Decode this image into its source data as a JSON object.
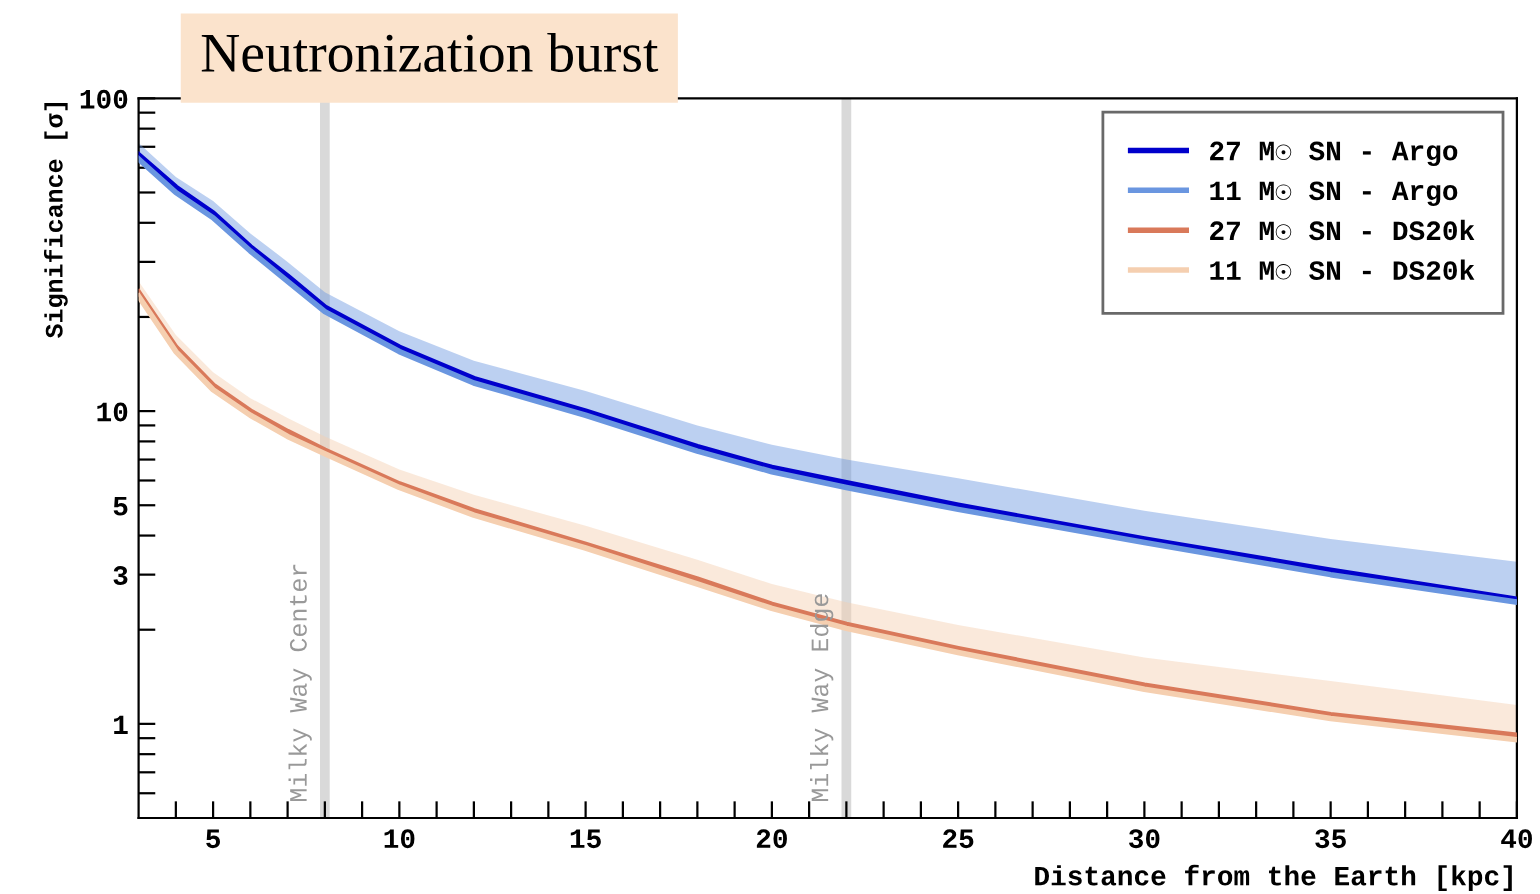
{
  "chart_data": {
    "type": "line",
    "title": "Neutronization burst",
    "xlabel": "Distance from the Earth [kpc]",
    "ylabel": "Significance [σ]",
    "log": "y",
    "xlim": [
      3,
      40
    ],
    "ylim": [
      0.5,
      100
    ],
    "xticks": [
      {
        "value": 4,
        "label": null
      },
      5,
      {
        "value": 6,
        "label": null
      },
      {
        "value": 7,
        "label": null
      },
      {
        "value": 8,
        "label": null
      },
      {
        "value": 9,
        "label": null
      },
      10,
      {
        "value": 11,
        "label": null
      },
      {
        "value": 12,
        "label": null
      },
      {
        "value": 13,
        "label": null
      },
      {
        "value": 14,
        "label": null
      },
      15,
      {
        "value": 16,
        "label": null
      },
      {
        "value": 17,
        "label": null
      },
      {
        "value": 18,
        "label": null
      },
      {
        "value": 19,
        "label": null
      },
      20,
      {
        "value": 21,
        "label": null
      },
      {
        "value": 22,
        "label": null
      },
      {
        "value": 23,
        "label": null
      },
      {
        "value": 24,
        "label": null
      },
      25,
      {
        "value": 26,
        "label": null
      },
      {
        "value": 27,
        "label": null
      },
      {
        "value": 28,
        "label": null
      },
      {
        "value": 29,
        "label": null
      },
      30,
      {
        "value": 31,
        "label": null
      },
      {
        "value": 32,
        "label": null
      },
      {
        "value": 33,
        "label": null
      },
      {
        "value": 34,
        "label": null
      },
      35,
      {
        "value": 36,
        "label": null
      },
      {
        "value": 37,
        "label": null
      },
      {
        "value": 38,
        "label": null
      },
      {
        "value": 39,
        "label": null
      },
      40
    ],
    "yticks": [
      {
        "value": 0.6,
        "label": null
      },
      {
        "value": 0.7,
        "label": null
      },
      {
        "value": 0.8,
        "label": null
      },
      {
        "value": 0.9,
        "label": null
      },
      1,
      {
        "value": 2,
        "label": null
      },
      3,
      {
        "value": 4,
        "label": null
      },
      5,
      {
        "value": 6,
        "label": null
      },
      {
        "value": 7,
        "label": null
      },
      {
        "value": 8,
        "label": null
      },
      {
        "value": 9,
        "label": null
      },
      10,
      {
        "value": 20,
        "label": null
      },
      {
        "value": 30,
        "label": null
      },
      {
        "value": 40,
        "label": null
      },
      {
        "value": 50,
        "label": null
      },
      {
        "value": 60,
        "label": null
      },
      {
        "value": 70,
        "label": null
      },
      {
        "value": 80,
        "label": null
      },
      {
        "value": 90,
        "label": null
      },
      100
    ],
    "x": [
      3,
      4,
      5,
      6,
      7,
      8,
      10,
      12,
      15,
      18,
      20,
      22,
      25,
      30,
      35,
      40
    ],
    "series": [
      {
        "name": "27 M☉ SN - Argo",
        "color": "#0000cc",
        "values": [
          66,
          52,
          43,
          33.5,
          27,
          21.5,
          16,
          12.7,
          10,
          7.7,
          6.6,
          5.9,
          5.0,
          3.9,
          3.1,
          2.5
        ]
      },
      {
        "name": "11 M☉ SN - Argo",
        "color": "#6a96e0",
        "values": [
          64,
          50,
          41.5,
          32.5,
          26,
          20.8,
          15.5,
          12.3,
          9.7,
          7.45,
          6.4,
          5.7,
          4.85,
          3.8,
          3.0,
          2.45
        ],
        "lower": [
          64,
          50,
          41.5,
          32.5,
          26,
          20.8,
          15.5,
          12.3,
          9.7,
          7.45,
          6.4,
          5.7,
          4.85,
          3.8,
          3.0,
          2.45
        ],
        "upper": [
          72,
          56,
          47,
          37,
          30,
          24,
          18,
          14.5,
          11.6,
          9.0,
          7.8,
          7.0,
          6.1,
          4.8,
          3.9,
          3.3
        ]
      },
      {
        "name": "27 M☉ SN - DS20k",
        "color": "#d9795a",
        "values": [
          24,
          16,
          12.1,
          10,
          8.6,
          7.5,
          5.85,
          4.8,
          3.75,
          2.9,
          2.41,
          2.08,
          1.74,
          1.33,
          1.07,
          0.92
        ]
      },
      {
        "name": "11 M☉ SN - DS20k",
        "color": "#f5cfb0",
        "values": [
          23.3,
          15.5,
          11.7,
          9.7,
          8.3,
          7.3,
          5.7,
          4.65,
          3.65,
          2.8,
          2.34,
          2.02,
          1.69,
          1.29,
          1.04,
          0.89
        ],
        "lower": [
          23.3,
          15.5,
          11.7,
          9.7,
          8.3,
          7.3,
          5.7,
          4.65,
          3.65,
          2.8,
          2.34,
          2.02,
          1.69,
          1.29,
          1.04,
          0.89
        ],
        "upper": [
          26,
          17.5,
          13.3,
          11,
          9.5,
          8.3,
          6.5,
          5.4,
          4.3,
          3.35,
          2.8,
          2.45,
          2.07,
          1.63,
          1.37,
          1.15
        ]
      }
    ],
    "ref_lines": [
      {
        "axis": "x",
        "value": 8,
        "label": "Milky Way Center",
        "color": "#d9d9d9"
      },
      {
        "axis": "x",
        "value": 22,
        "label": "Milky Way Edge",
        "color": "#d9d9d9"
      }
    ],
    "legend": "top right",
    "grid": false,
    "marker": "none",
    "line_style": "solid"
  }
}
